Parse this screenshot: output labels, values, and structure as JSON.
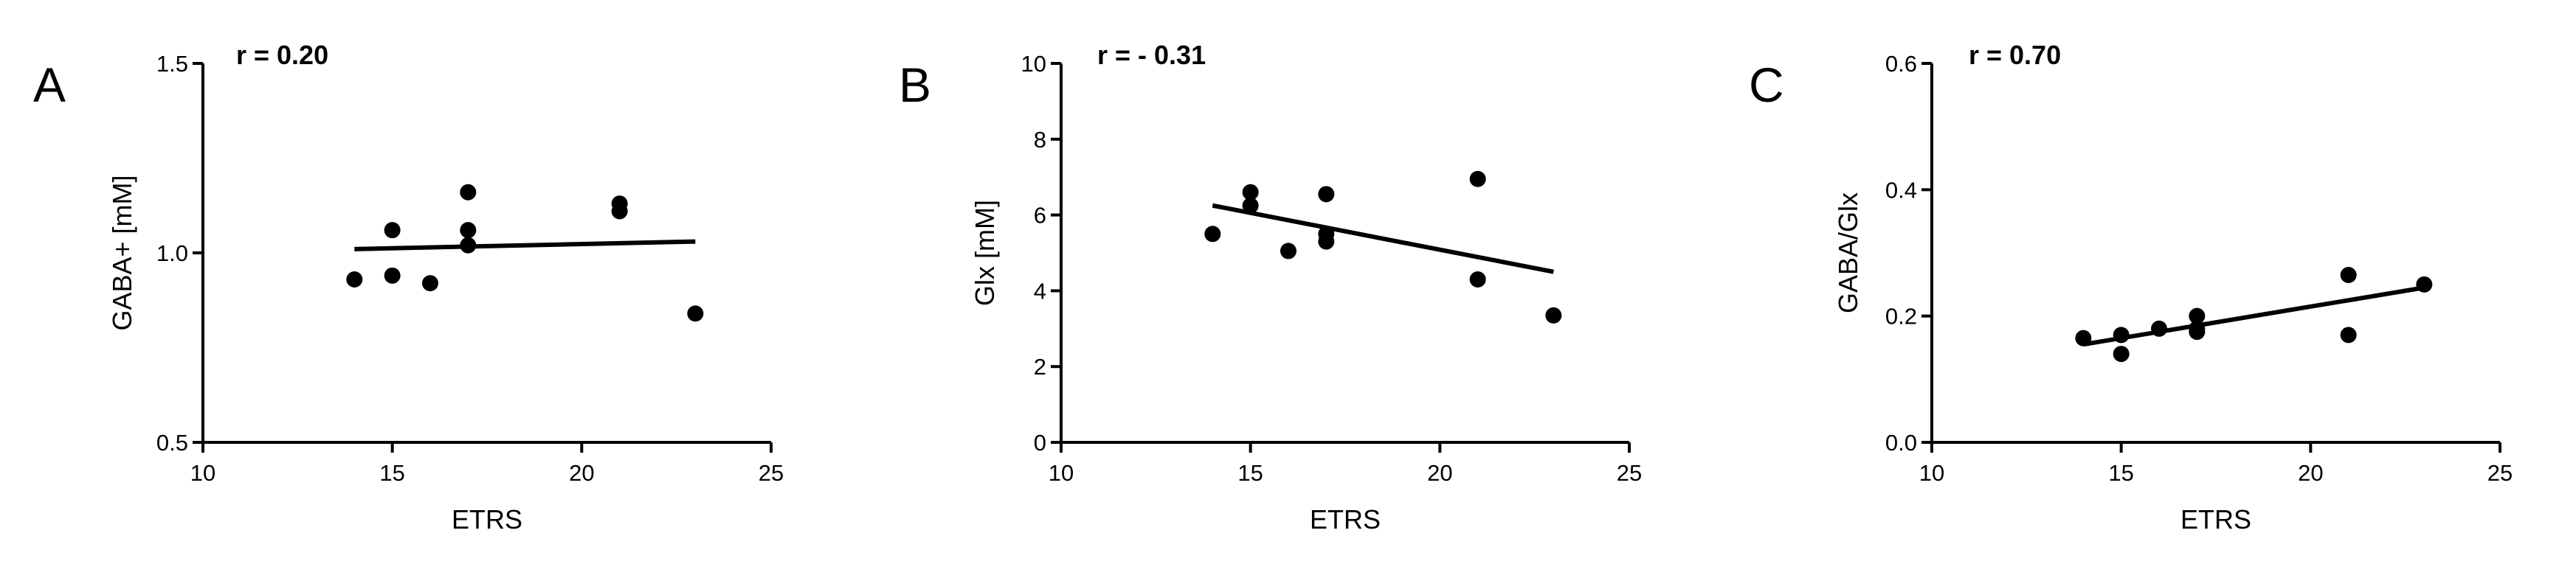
{
  "chart_data": [
    {
      "type": "scatter",
      "panel_label": "A",
      "annotation": "r = 0.20",
      "xlabel": "ETRS",
      "ylabel": "GABA+ [mM]",
      "xlim": [
        10,
        25
      ],
      "ylim": [
        0.5,
        1.5
      ],
      "xticks": [
        10,
        15,
        20,
        25
      ],
      "xtick_labels": [
        "10",
        "15",
        "20",
        "25"
      ],
      "yticks": [
        0.5,
        1.0,
        1.5
      ],
      "ytick_labels": [
        "0.5",
        "1.0",
        "1.5"
      ],
      "points": [
        {
          "x": 14,
          "y": 0.93
        },
        {
          "x": 15,
          "y": 1.06
        },
        {
          "x": 15,
          "y": 0.94
        },
        {
          "x": 16,
          "y": 0.92
        },
        {
          "x": 17,
          "y": 1.16
        },
        {
          "x": 17,
          "y": 1.06
        },
        {
          "x": 17,
          "y": 1.02
        },
        {
          "x": 21,
          "y": 1.13
        },
        {
          "x": 21,
          "y": 1.11
        },
        {
          "x": 23,
          "y": 0.84
        }
      ],
      "fit_line": {
        "x": [
          14,
          23
        ],
        "y": [
          1.01,
          1.03
        ]
      }
    },
    {
      "type": "scatter",
      "panel_label": "B",
      "annotation": "r = - 0.31",
      "xlabel": "ETRS",
      "ylabel": "Glx [mM]",
      "xlim": [
        10,
        25
      ],
      "ylim": [
        0,
        10
      ],
      "xticks": [
        10,
        15,
        20,
        25
      ],
      "xtick_labels": [
        "10",
        "15",
        "20",
        "25"
      ],
      "yticks": [
        0,
        2,
        4,
        6,
        8,
        10
      ],
      "ytick_labels": [
        "0",
        "2",
        "4",
        "6",
        "8",
        "10"
      ],
      "points": [
        {
          "x": 14,
          "y": 5.5
        },
        {
          "x": 15,
          "y": 6.6
        },
        {
          "x": 15,
          "y": 6.25
        },
        {
          "x": 16,
          "y": 5.05
        },
        {
          "x": 17,
          "y": 6.55
        },
        {
          "x": 17,
          "y": 5.5
        },
        {
          "x": 17,
          "y": 5.3
        },
        {
          "x": 21,
          "y": 6.95
        },
        {
          "x": 21,
          "y": 4.3
        },
        {
          "x": 23,
          "y": 3.35
        }
      ],
      "fit_line": {
        "x": [
          14,
          23
        ],
        "y": [
          6.25,
          4.5
        ]
      }
    },
    {
      "type": "scatter",
      "panel_label": "C",
      "annotation": "r = 0.70",
      "xlabel": "ETRS",
      "ylabel": "GABA/Glx",
      "xlim": [
        10,
        25
      ],
      "ylim": [
        0.0,
        0.6
      ],
      "xticks": [
        10,
        15,
        20,
        25
      ],
      "xtick_labels": [
        "10",
        "15",
        "20",
        "25"
      ],
      "yticks": [
        0.0,
        0.2,
        0.4,
        0.6
      ],
      "ytick_labels": [
        "0.0",
        "0.2",
        "0.4",
        "0.6"
      ],
      "points": [
        {
          "x": 14,
          "y": 0.165
        },
        {
          "x": 15,
          "y": 0.17
        },
        {
          "x": 15,
          "y": 0.14
        },
        {
          "x": 16,
          "y": 0.18
        },
        {
          "x": 17,
          "y": 0.2
        },
        {
          "x": 17,
          "y": 0.18
        },
        {
          "x": 17,
          "y": 0.175
        },
        {
          "x": 21,
          "y": 0.265
        },
        {
          "x": 21,
          "y": 0.17
        },
        {
          "x": 23,
          "y": 0.25
        }
      ],
      "fit_line": {
        "x": [
          14,
          23
        ],
        "y": [
          0.155,
          0.245
        ]
      }
    }
  ]
}
